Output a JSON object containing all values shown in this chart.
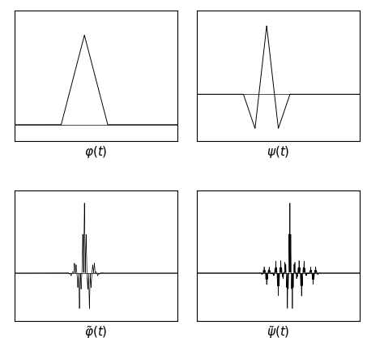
{
  "background_color": "#ffffff",
  "phi_label": "$\\varphi(t)$",
  "psi_label": "$\\psi(t)$",
  "phi_tilde_label": "$\\tilde{\\varphi}(t)$",
  "psi_tilde_label": "$\\tilde{\\psi}(t)$",
  "label_fontsize": 11,
  "line_color": "#000000",
  "line_width": 0.7
}
